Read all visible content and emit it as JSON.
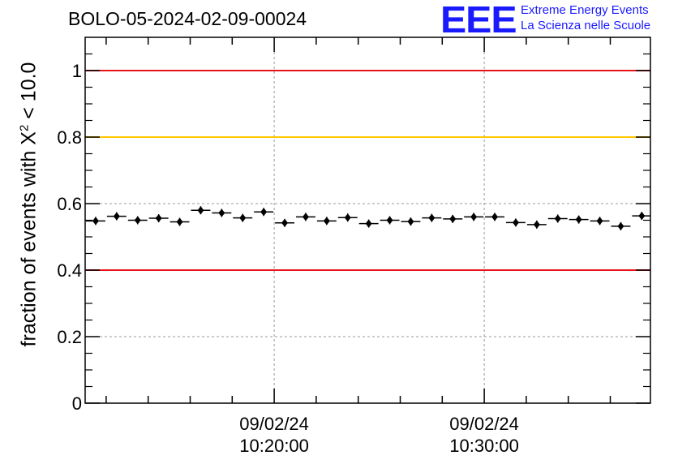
{
  "header": {
    "title": "BOLO-05-2024-02-09-00024"
  },
  "logo": {
    "mark": "EEE",
    "line1": "Extreme Energy Events",
    "line2": "La Scienza nelle Scuole",
    "color": "#1a1aff"
  },
  "chart_data": {
    "type": "scatter",
    "ylabel_prefix": "fraction of events with Χ",
    "ylabel_sup": "2",
    "ylabel_suffix": " < 10.0",
    "ylim": [
      0,
      1.1
    ],
    "yticks": [
      0,
      0.2,
      0.4,
      0.6,
      0.8,
      1
    ],
    "ytick_labels": [
      "0",
      "0.2",
      "0.4",
      "0.6",
      "0.8",
      "1"
    ],
    "xlim_minutes": [
      0,
      26.5
    ],
    "xticks": [
      {
        "minute": 9,
        "line1": "09/02/24",
        "line2": "10:20:00"
      },
      {
        "minute": 19,
        "line1": "09/02/24",
        "line2": "10:30:00"
      }
    ],
    "grid": true,
    "reference_lines": [
      {
        "y": 1.0,
        "color": "#e8141a"
      },
      {
        "y": 0.8,
        "color": "#ffc800"
      },
      {
        "y": 0.4,
        "color": "#e8141a"
      }
    ],
    "points": [
      {
        "x": 0.5,
        "y": 0.548
      },
      {
        "x": 1.5,
        "y": 0.562
      },
      {
        "x": 2.5,
        "y": 0.55
      },
      {
        "x": 3.5,
        "y": 0.556
      },
      {
        "x": 4.5,
        "y": 0.545
      },
      {
        "x": 5.5,
        "y": 0.58
      },
      {
        "x": 6.5,
        "y": 0.572
      },
      {
        "x": 7.5,
        "y": 0.557
      },
      {
        "x": 8.5,
        "y": 0.575
      },
      {
        "x": 9.5,
        "y": 0.542
      },
      {
        "x": 10.5,
        "y": 0.56
      },
      {
        "x": 11.5,
        "y": 0.548
      },
      {
        "x": 12.5,
        "y": 0.558
      },
      {
        "x": 13.5,
        "y": 0.54
      },
      {
        "x": 14.5,
        "y": 0.55
      },
      {
        "x": 15.5,
        "y": 0.546
      },
      {
        "x": 16.5,
        "y": 0.557
      },
      {
        "x": 17.5,
        "y": 0.554
      },
      {
        "x": 18.5,
        "y": 0.56
      },
      {
        "x": 19.5,
        "y": 0.56
      },
      {
        "x": 20.5,
        "y": 0.543
      },
      {
        "x": 21.5,
        "y": 0.537
      },
      {
        "x": 22.5,
        "y": 0.555
      },
      {
        "x": 23.5,
        "y": 0.552
      },
      {
        "x": 24.5,
        "y": 0.548
      },
      {
        "x": 25.5,
        "y": 0.532
      },
      {
        "x": 26.5,
        "y": 0.563
      }
    ]
  }
}
